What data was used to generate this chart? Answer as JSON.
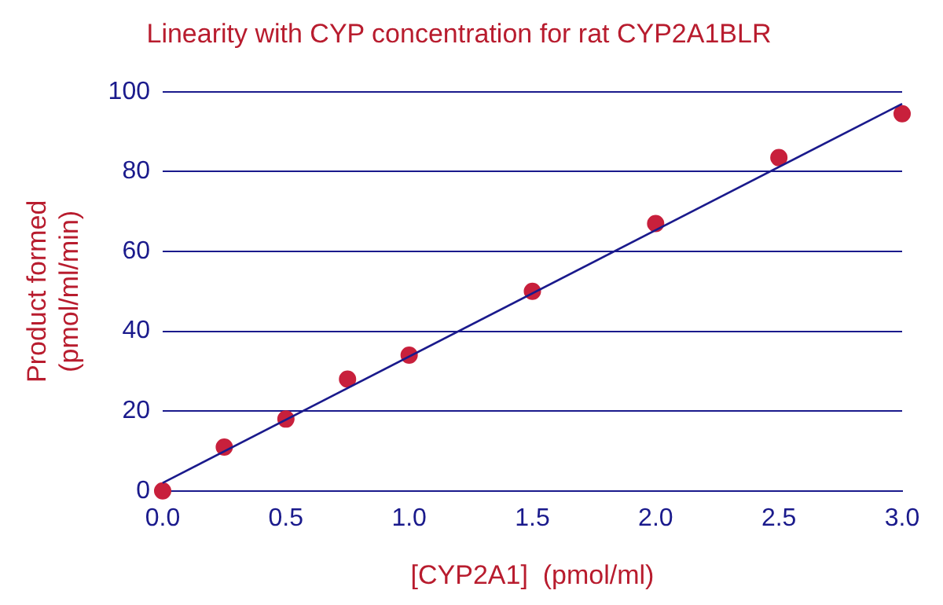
{
  "chart_data": {
    "type": "scatter",
    "title": "Linearity with CYP concentration for rat CYP2A1BLR",
    "xlabel": "[CYP2A1]  (pmol/ml)",
    "ylabel": "Product formed\n(pmol/ml/min)",
    "x": [
      0,
      0.25,
      0.5,
      0.75,
      1,
      1.5,
      2,
      2.5,
      3
    ],
    "series": [
      {
        "color": "#c8203c",
        "values": [
          0,
          11,
          18,
          28,
          34,
          50,
          67,
          83.5,
          94.5
        ],
        "marker": "circle"
      },
      {
        "type": "line",
        "color": "#1a1a8c",
        "x": [
          0,
          3
        ],
        "values": [
          2,
          97
        ],
        "marker": "none",
        "line_style": "solid"
      }
    ],
    "xlim": [
      0,
      3
    ],
    "xticks": [
      {
        "value": 0,
        "label": "0.0"
      },
      {
        "value": 0.5,
        "label": "0.5"
      },
      {
        "value": 1,
        "label": "1.0"
      },
      {
        "value": 1.5,
        "label": "1.5"
      },
      {
        "value": 2,
        "label": "2.0"
      },
      {
        "value": 2.5,
        "label": "2.5"
      },
      {
        "value": 3,
        "label": "3.0"
      }
    ],
    "ylim": [
      0,
      100
    ],
    "yticks": [
      0,
      20,
      40,
      60,
      80,
      100
    ],
    "grid": "y",
    "legend": false
  }
}
